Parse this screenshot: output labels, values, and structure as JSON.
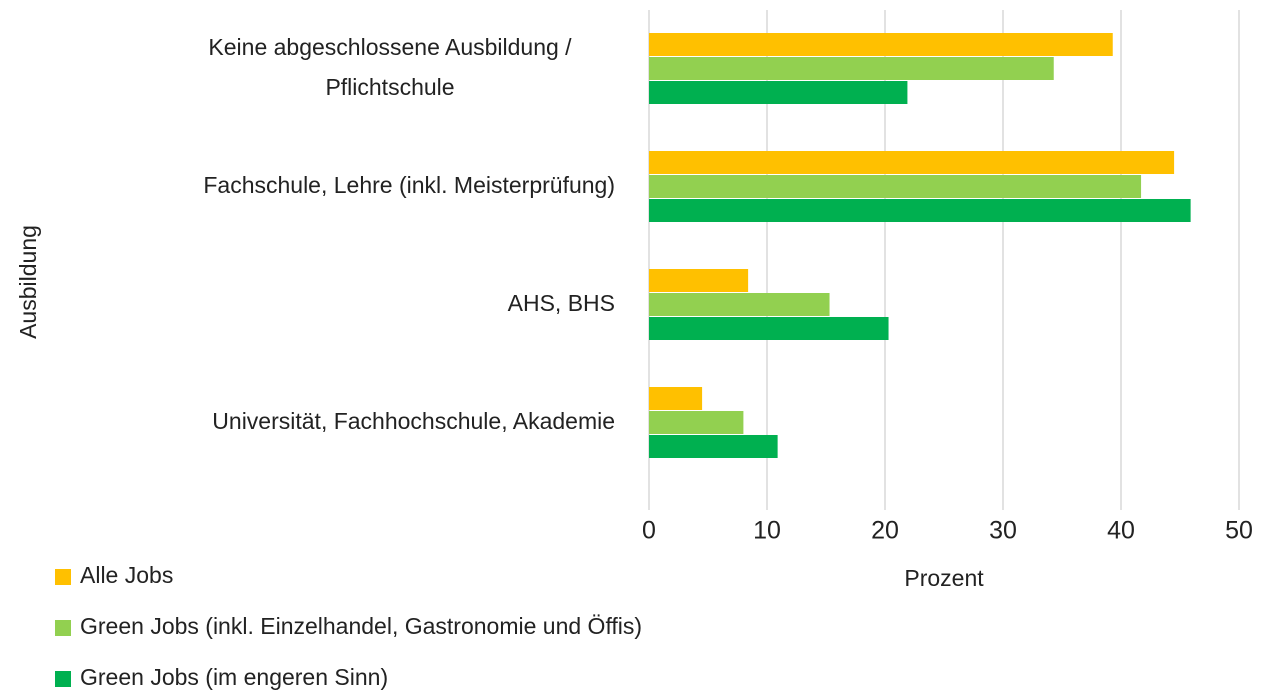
{
  "chart_data": {
    "type": "hbar",
    "x_label": "Prozent",
    "y_label": "Ausbildung",
    "categories": [
      [
        "Keine abgeschlossene Ausbildung /",
        "Pflichtschule"
      ],
      "Fachschule,  Lehre (inkl. Meisterprüfung)",
      "AHS, BHS",
      "Universität, Fachhochschule, Akademie"
    ],
    "series": [
      {
        "name": "Alle Jobs",
        "color": "#ffc000",
        "values": [
          39.3,
          44.5,
          8.4,
          4.5
        ]
      },
      {
        "name": "Green Jobs (inkl. Einzelhandel, Gastronomie und Öffis)",
        "color": "#92d050",
        "values": [
          34.3,
          41.7,
          15.3,
          8.0
        ]
      },
      {
        "name": "Green Jobs (im engeren Sinn)",
        "color": "#00b050",
        "values": [
          21.9,
          45.9,
          20.3,
          10.9
        ]
      }
    ],
    "xlim": [
      0,
      50
    ],
    "xticks": [
      0,
      10,
      20,
      30,
      40,
      50
    ],
    "grid": true,
    "legend": "bottom-left"
  }
}
